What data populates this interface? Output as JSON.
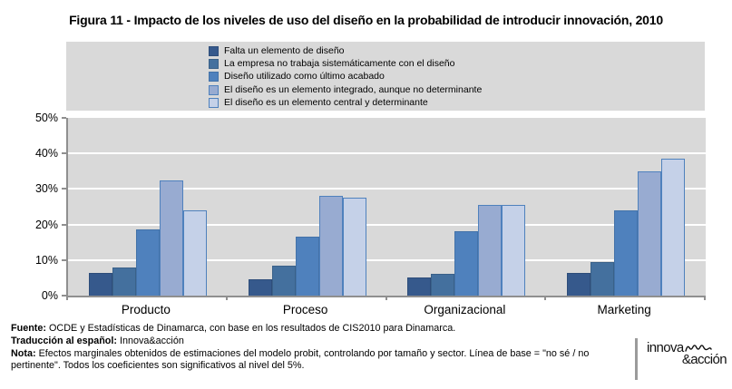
{
  "title": "Figura 11 - Impacto de los niveles de uso del diseño en la probabilidad de introducir innovación, 2010",
  "chart_data": {
    "type": "bar",
    "title": "Figura 11 - Impacto de los niveles de uso del diseño en la probabilidad de introducir innovación, 2010",
    "categories": [
      "Producto",
      "Proceso",
      "Organizacional",
      "Marketing"
    ],
    "series": [
      {
        "name": "Falta un elemento de diseño",
        "color": "#36598C",
        "border": "#2E4D7A",
        "values": [
          6.5,
          4.5,
          5,
          6.5
        ]
      },
      {
        "name": "La empresa no trabaja sistemáticamente con el diseño",
        "color": "#44709E",
        "border": "#3A6189",
        "values": [
          8,
          8.5,
          6,
          9.5
        ]
      },
      {
        "name": "Diseño utilizado como último acabado",
        "color": "#4F81BD",
        "border": "#4372A8",
        "values": [
          18.5,
          16.5,
          18,
          24
        ]
      },
      {
        "name": "El diseño es un elemento integrado, aunque no determinante",
        "color": "#98ABD1",
        "border": "#4F81BD",
        "values": [
          32.5,
          28,
          25.5,
          35
        ]
      },
      {
        "name": "El diseño es un elemento central y determinante",
        "color": "#C5D1E8",
        "border": "#4F81BD",
        "values": [
          24,
          27.5,
          25.5,
          38.5
        ]
      }
    ],
    "ylim": [
      0,
      50
    ],
    "y_ticks": [
      "50%",
      "40%",
      "30%",
      "20%",
      "10%",
      "0%"
    ],
    "grid": true,
    "legend_position": "top",
    "plot_bg": "#D9D9D9",
    "xlabel": "",
    "ylabel": ""
  },
  "footer": {
    "lines": [
      {
        "label": "Fuente:",
        "text": " OCDE y Estadísticas de Dinamarca, con base en los resultados de CIS2010 para Dinamarca."
      },
      {
        "label": "Traducción al español:",
        "text": " Innova&acción"
      },
      {
        "label": "Nota:",
        "text": " Efectos marginales obtenidos de estimaciones del modelo probit, controlando por tamaño y sector. Línea de base = \"no sé / no pertinente\". Todos los coeficientes son significativos al nivel del 5%."
      }
    ]
  },
  "logo": {
    "line1": "innova",
    "line2": "&acción"
  }
}
